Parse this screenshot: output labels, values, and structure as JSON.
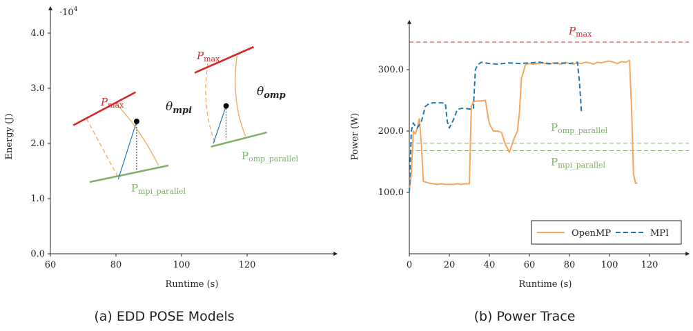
{
  "captions": {
    "a": "(a) EDD POSE Models",
    "b": "(b) Power Trace"
  },
  "chart_data": [
    {
      "type": "line",
      "xlabel": "Runtime (s)",
      "ylabel": "Energy (J)",
      "y_exponent": "·10^4",
      "xlim": [
        60,
        130
      ],
      "ylim": [
        0,
        4.5
      ],
      "xticks": [
        "60",
        "80",
        "100",
        "120"
      ],
      "yticks": [
        "0.0",
        "1.0",
        "2.0",
        "3.0",
        "4.0"
      ],
      "grid": false,
      "labels": {
        "pmax": "P_max",
        "mpi_parallel": "P_mpi_parallel",
        "omp_parallel": "P_omp_parallel",
        "theta_mpi": "θ_mpi",
        "theta_omp": "θ_omp"
      },
      "colors": {
        "pmax": "#d62728",
        "parallel": "#7fb069",
        "curve": "#f5a65b",
        "blue": "#1f77b4"
      },
      "models": [
        {
          "name": "mpi",
          "pmax_line": [
            [
              67,
              2.33
            ],
            [
              86,
              2.93
            ]
          ],
          "parallel_line": [
            [
              72,
              1.3
            ],
            [
              96,
              1.6
            ]
          ],
          "point": [
            86.3,
            2.4
          ],
          "base": [
            80.7,
            1.35
          ],
          "curve": [
            [
              80,
              2.72
            ],
            [
              87,
              2.3
            ],
            [
              93,
              1.6
            ]
          ],
          "dashed_curve": [
            [
              71,
              2.45
            ],
            [
              76,
              1.9
            ],
            [
              81,
              1.35
            ]
          ]
        },
        {
          "name": "omp",
          "pmax_line": [
            [
              104,
              3.28
            ],
            [
              122,
              3.75
            ]
          ],
          "parallel_line": [
            [
              109,
              1.94
            ],
            [
              126,
              2.2
            ]
          ],
          "point": [
            113.6,
            2.68
          ],
          "base": [
            109.7,
            2.0
          ],
          "curve": [
            [
              117,
              3.62
            ],
            [
              115,
              2.8
            ],
            [
              119.5,
              2.13
            ]
          ],
          "dashed_curve": [
            [
              108,
              3.45
            ],
            [
              106,
              2.6
            ],
            [
              110.5,
              1.98
            ]
          ]
        }
      ]
    },
    {
      "type": "line",
      "xlabel": "Runtime (s)",
      "ylabel": "Power (W)",
      "xlim": [
        0,
        130
      ],
      "ylim": [
        0,
        400
      ],
      "xticks": [
        "0",
        "20",
        "40",
        "60",
        "80",
        "100",
        "120"
      ],
      "yticks": [
        "100.0",
        "200.0",
        "300.0"
      ],
      "grid": false,
      "legend_placement": "bottom-right",
      "reference_lines": [
        {
          "label": "P_max",
          "value": 345,
          "color": "#d62728"
        },
        {
          "label": "P_omp_parallel",
          "value": 180,
          "color": "#7fb069"
        },
        {
          "label": "P_mpi_parallel",
          "value": 168,
          "color": "#7fb069"
        }
      ],
      "series": [
        {
          "name": "OpenMP",
          "color": "#f5a65b",
          "style": "solid",
          "x": [
            0,
            1,
            2,
            3,
            4,
            5,
            6,
            7,
            8,
            10,
            12,
            14,
            16,
            18,
            20,
            22,
            24,
            26,
            28,
            30,
            31,
            32,
            34,
            36,
            38,
            39,
            40,
            42,
            44,
            46,
            48,
            49,
            50,
            52,
            54,
            55,
            56,
            58,
            60,
            62,
            64,
            66,
            68,
            70,
            72,
            74,
            76,
            78,
            80,
            82,
            84,
            86,
            88,
            90,
            92,
            94,
            96,
            98,
            100,
            102,
            104,
            106,
            108,
            110,
            111,
            112,
            113,
            114
          ],
          "y": [
            100,
            130,
            200,
            195,
            205,
            220,
            180,
            118,
            117,
            115,
            114,
            113,
            114,
            113,
            113,
            113,
            114,
            113,
            114,
            114,
            240,
            248,
            249,
            249,
            250,
            230,
            212,
            200,
            200,
            198,
            178,
            172,
            165,
            185,
            200,
            230,
            285,
            308,
            310,
            309,
            310,
            311,
            310,
            309,
            311,
            310,
            309,
            312,
            310,
            309,
            311,
            310,
            312,
            311,
            309,
            312,
            311,
            313,
            314,
            312,
            310,
            313,
            312,
            315,
            240,
            130,
            115,
            115
          ]
        },
        {
          "name": "MPI",
          "color": "#1f77b4",
          "style": "dashed",
          "x": [
            0,
            1,
            2,
            3,
            4,
            5,
            6,
            8,
            10,
            12,
            14,
            16,
            18,
            19,
            20,
            22,
            24,
            26,
            28,
            30,
            32,
            33,
            34,
            35,
            36,
            38,
            40,
            44,
            50,
            55,
            60,
            65,
            70,
            75,
            80,
            84,
            85,
            86
          ],
          "y": [
            100,
            200,
            213,
            208,
            205,
            210,
            215,
            240,
            245,
            246,
            246,
            246,
            245,
            215,
            205,
            218,
            235,
            237,
            237,
            236,
            236,
            300,
            307,
            310,
            312,
            311,
            310,
            309,
            311,
            310,
            311,
            312,
            310,
            311,
            310,
            312,
            280,
            230
          ]
        }
      ]
    }
  ]
}
